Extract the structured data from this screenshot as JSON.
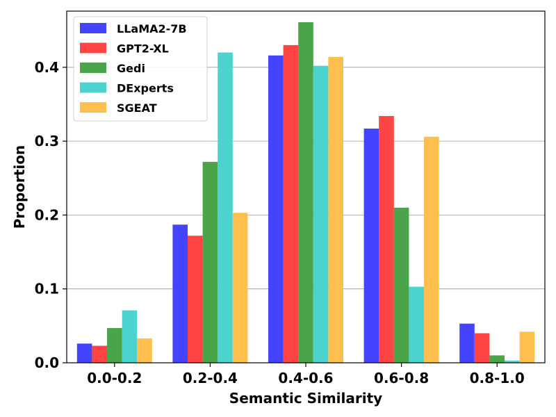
{
  "chart_data": {
    "type": "bar",
    "xlabel": "Semantic Similarity",
    "ylabel": "Proportion",
    "categories": [
      "0.0-0.2",
      "0.2-0.4",
      "0.4-0.6",
      "0.6-0.8",
      "0.8-1.0"
    ],
    "series": [
      {
        "name": "LLaMA2-7B",
        "color": "#4444ff",
        "values": [
          0.026,
          0.187,
          0.416,
          0.317,
          0.053
        ]
      },
      {
        "name": "GPT2-XL",
        "color": "#ff4444",
        "values": [
          0.023,
          0.172,
          0.43,
          0.334,
          0.04
        ]
      },
      {
        "name": "Gedi",
        "color": "#4aa54a",
        "values": [
          0.047,
          0.272,
          0.461,
          0.21,
          0.01
        ]
      },
      {
        "name": "DExperts",
        "color": "#4cd3d0",
        "values": [
          0.071,
          0.42,
          0.402,
          0.103,
          0.003
        ]
      },
      {
        "name": "SGEAT",
        "color": "#ffbf4f",
        "values": [
          0.033,
          0.203,
          0.414,
          0.306,
          0.042
        ]
      }
    ],
    "ylim": [
      0,
      0.476
    ],
    "yticks": [
      0.0,
      0.1,
      0.2,
      0.3,
      0.4
    ],
    "ytick_labels": [
      "0.0",
      "0.1",
      "0.2",
      "0.3",
      "0.4"
    ],
    "grid": "horizontal",
    "grid_color": "#999999",
    "legend_position": "upper-left"
  }
}
